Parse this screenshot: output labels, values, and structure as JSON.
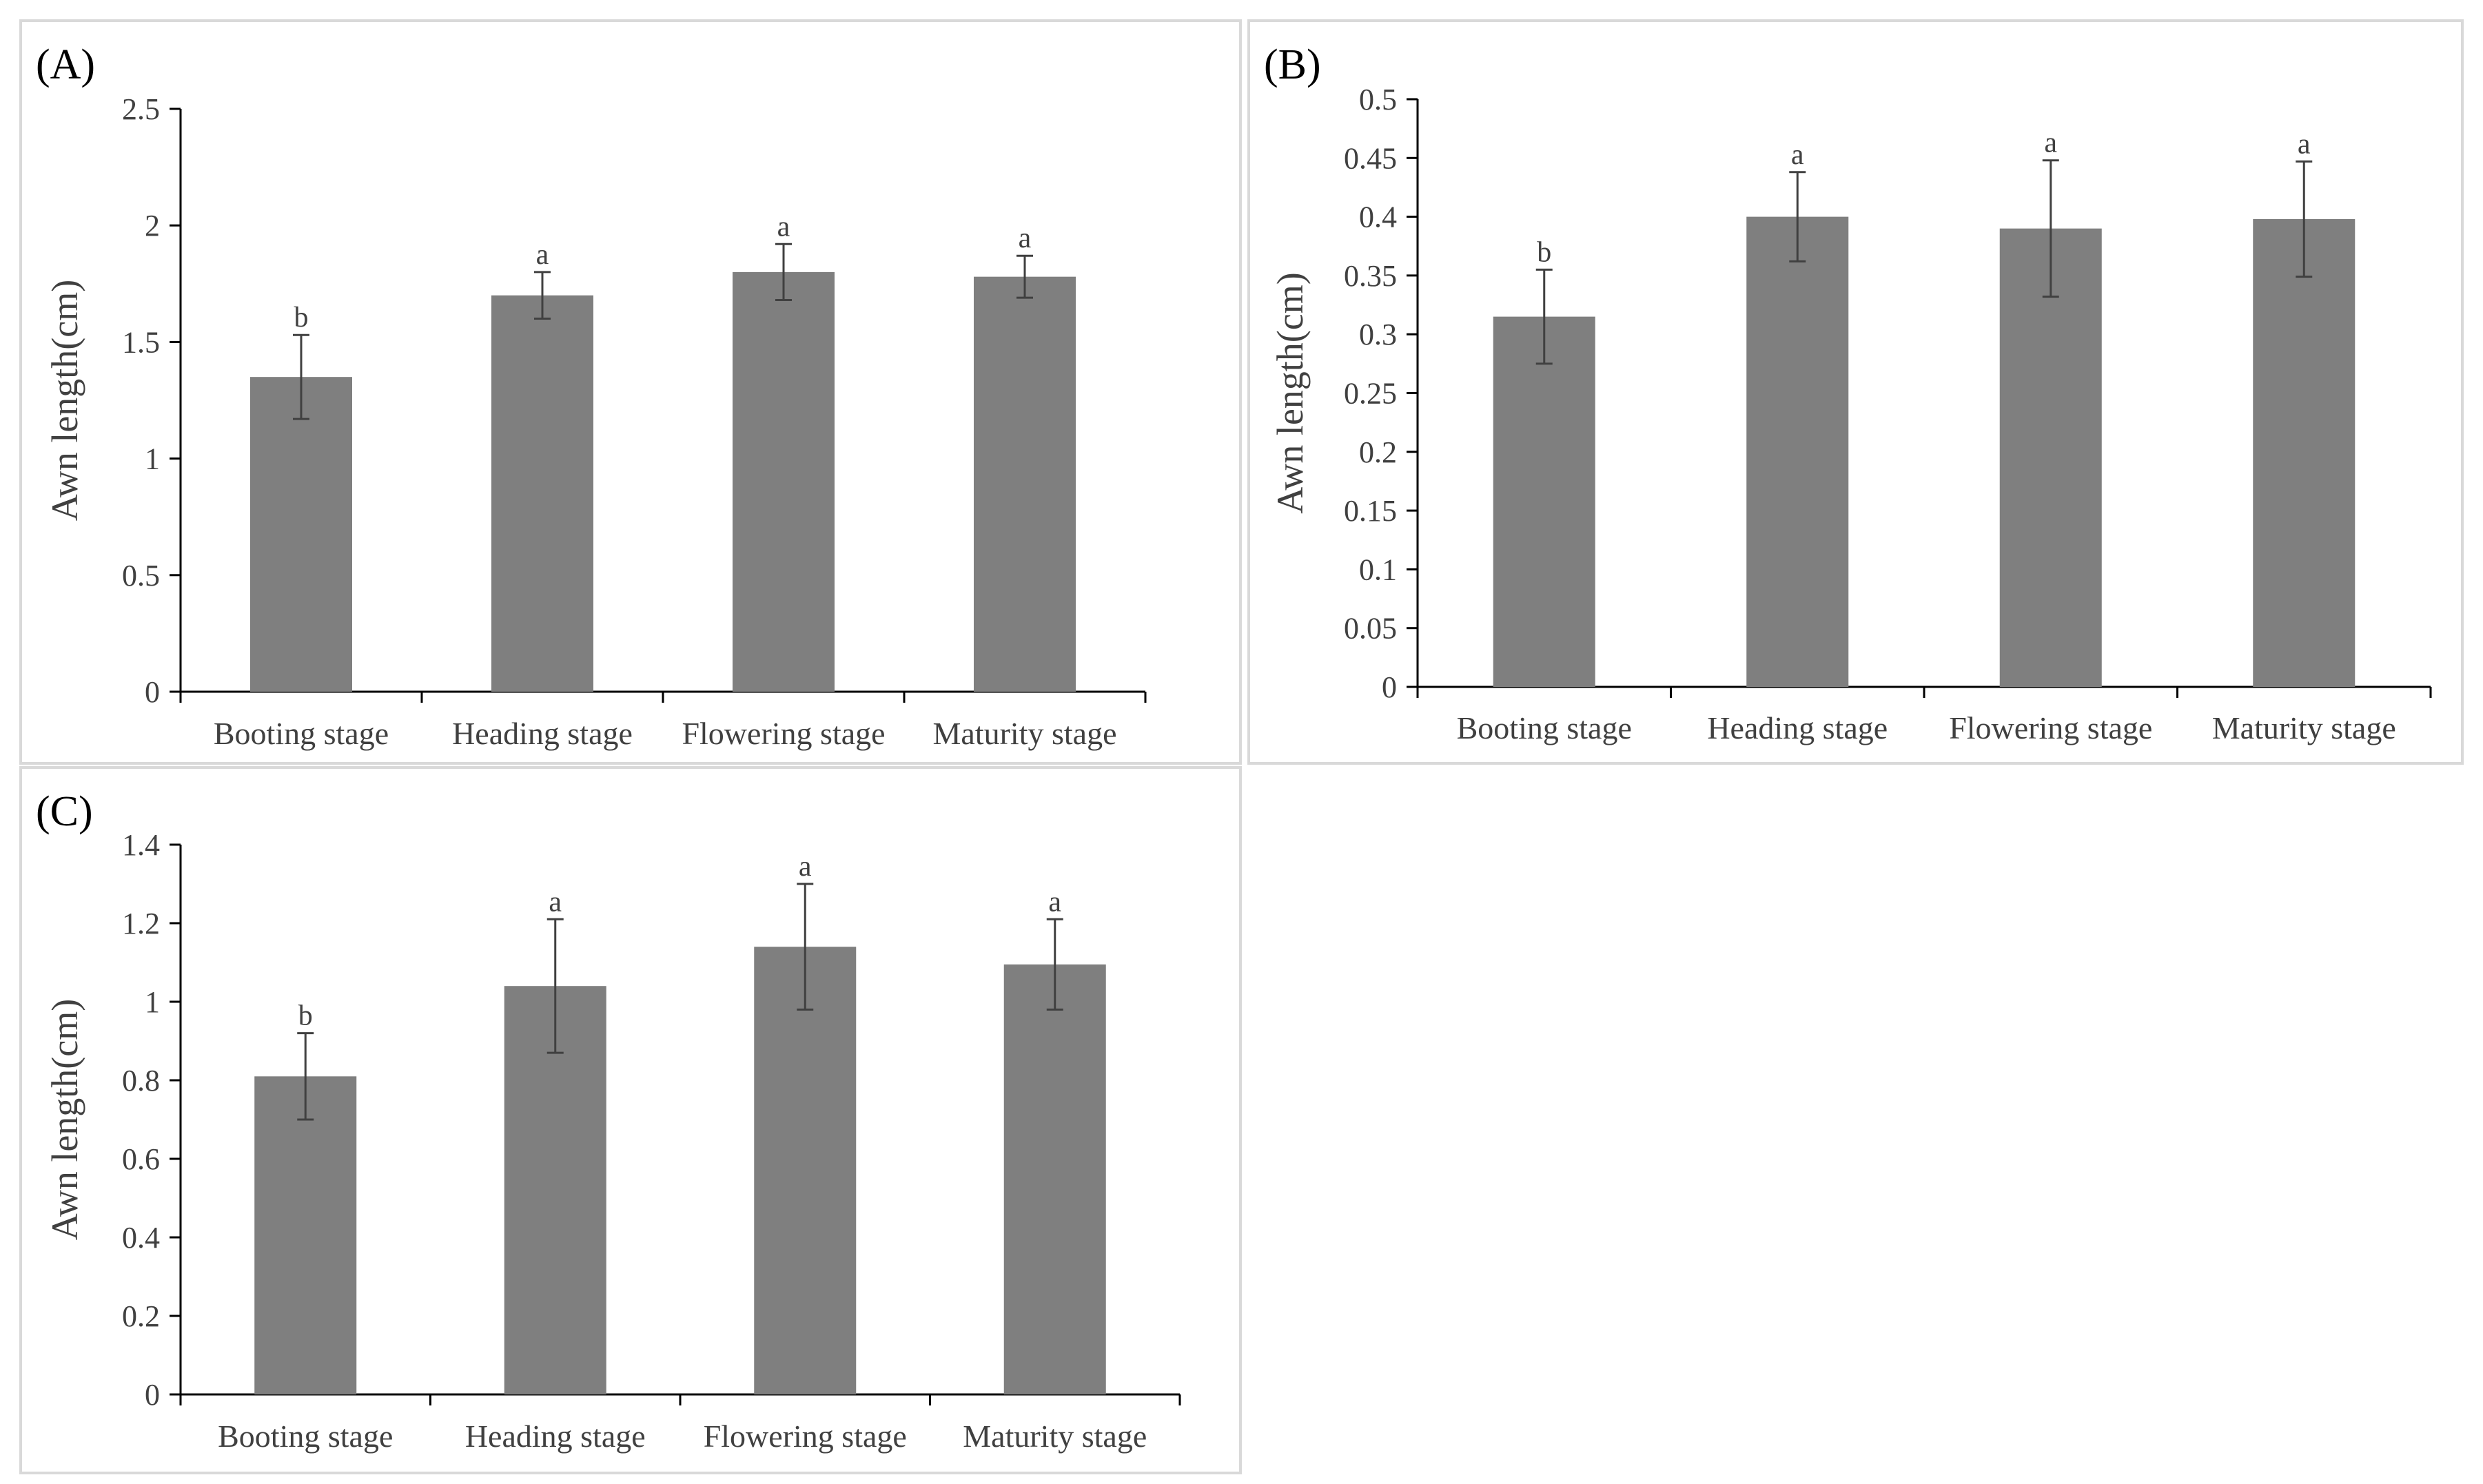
{
  "chart_data": [
    {
      "type": "bar",
      "panel_label": "(A)",
      "ylabel": "Awn length(cm)",
      "xlabel": "",
      "categories": [
        "Booting stage",
        "Heading stage",
        "Flowering stage",
        "Maturity stage"
      ],
      "values": [
        1.35,
        1.7,
        1.8,
        1.78
      ],
      "errors": [
        0.18,
        0.1,
        0.12,
        0.09
      ],
      "significance": [
        "b",
        "a",
        "a",
        "a"
      ],
      "ylim": [
        0,
        2.5
      ],
      "yticks": [
        0,
        0.5,
        1,
        1.5,
        2,
        2.5
      ],
      "ytick_labels": [
        "0",
        "0.5",
        "1",
        "1.5",
        "2",
        "2.5"
      ],
      "grid": false,
      "bar_color": "#7f7f7f"
    },
    {
      "type": "bar",
      "panel_label": "(B)",
      "ylabel": "Awn length(cm)",
      "xlabel": "",
      "categories": [
        "Booting stage",
        "Heading stage",
        "Flowering stage",
        "Maturity stage"
      ],
      "values": [
        0.315,
        0.4,
        0.39,
        0.398
      ],
      "errors": [
        0.04,
        0.038,
        0.058,
        0.049
      ],
      "significance": [
        "b",
        "a",
        "a",
        "a"
      ],
      "ylim": [
        0,
        0.5
      ],
      "yticks": [
        0,
        0.05,
        0.1,
        0.15,
        0.2,
        0.25,
        0.3,
        0.35,
        0.4,
        0.45,
        0.5
      ],
      "ytick_labels": [
        "0",
        "0.05",
        "0.1",
        "0.15",
        "0.2",
        "0.25",
        "0.3",
        "0.35",
        "0.4",
        "0.45",
        "0.5"
      ],
      "grid": false,
      "bar_color": "#7f7f7f"
    },
    {
      "type": "bar",
      "panel_label": "(C)",
      "ylabel": "Awn length(cm)",
      "xlabel": "",
      "categories": [
        "Booting stage",
        "Heading stage",
        "Flowering stage",
        "Maturity stage"
      ],
      "values": [
        0.81,
        1.04,
        1.14,
        1.095
      ],
      "errors": [
        0.11,
        0.17,
        0.16,
        0.115
      ],
      "significance": [
        "b",
        "a",
        "a",
        "a"
      ],
      "ylim": [
        0,
        1.4
      ],
      "yticks": [
        0,
        0.2,
        0.4,
        0.6,
        0.8,
        1,
        1.2,
        1.4
      ],
      "ytick_labels": [
        "0",
        "0.2",
        "0.4",
        "0.6",
        "0.8",
        "1",
        "1.2",
        "1.4"
      ],
      "grid": false,
      "bar_color": "#7f7f7f"
    }
  ]
}
